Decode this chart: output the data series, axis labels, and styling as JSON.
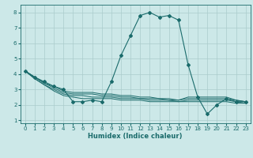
{
  "title": "",
  "xlabel": "Humidex (Indice chaleur)",
  "ylabel": "",
  "background_color": "#cce8e8",
  "grid_color": "#aacccc",
  "line_color": "#1a6b6b",
  "xlim": [
    -0.5,
    23.5
  ],
  "ylim": [
    0.8,
    8.5
  ],
  "xticks": [
    0,
    1,
    2,
    3,
    4,
    5,
    6,
    7,
    8,
    9,
    10,
    11,
    12,
    13,
    14,
    15,
    16,
    17,
    18,
    19,
    20,
    21,
    22,
    23
  ],
  "yticks": [
    1,
    2,
    3,
    4,
    5,
    6,
    7,
    8
  ],
  "lines": [
    {
      "x": [
        0,
        1,
        2,
        3,
        4,
        5,
        6,
        7,
        8,
        9,
        10,
        11,
        12,
        13,
        14,
        15,
        16,
        17,
        18,
        19,
        20,
        21,
        22,
        23
      ],
      "y": [
        4.2,
        3.8,
        3.5,
        3.2,
        3.0,
        2.2,
        2.2,
        2.3,
        2.2,
        3.5,
        5.2,
        6.5,
        7.8,
        8.0,
        7.7,
        7.8,
        7.5,
        4.6,
        2.5,
        1.4,
        2.0,
        2.4,
        2.2,
        2.2
      ],
      "marker": true
    },
    {
      "x": [
        0,
        1,
        2,
        3,
        4,
        5,
        6,
        7,
        8,
        9,
        10,
        11,
        12,
        13,
        14,
        15,
        16,
        17,
        18,
        19,
        20,
        21,
        22,
        23
      ],
      "y": [
        4.2,
        3.8,
        3.4,
        3.2,
        2.9,
        2.8,
        2.8,
        2.8,
        2.7,
        2.7,
        2.6,
        2.6,
        2.5,
        2.5,
        2.4,
        2.4,
        2.3,
        2.5,
        2.5,
        2.5,
        2.5,
        2.5,
        2.3,
        2.2
      ],
      "marker": false
    },
    {
      "x": [
        0,
        1,
        2,
        3,
        4,
        5,
        6,
        7,
        8,
        9,
        10,
        11,
        12,
        13,
        14,
        15,
        16,
        17,
        18,
        19,
        20,
        21,
        22,
        23
      ],
      "y": [
        4.2,
        3.8,
        3.4,
        3.1,
        2.8,
        2.7,
        2.7,
        2.7,
        2.6,
        2.6,
        2.5,
        2.5,
        2.4,
        2.4,
        2.4,
        2.3,
        2.3,
        2.4,
        2.4,
        2.4,
        2.4,
        2.4,
        2.3,
        2.2
      ],
      "marker": false
    },
    {
      "x": [
        0,
        1,
        2,
        3,
        4,
        5,
        6,
        7,
        8,
        9,
        10,
        11,
        12,
        13,
        14,
        15,
        16,
        17,
        18,
        19,
        20,
        21,
        22,
        23
      ],
      "y": [
        4.2,
        3.7,
        3.3,
        3.0,
        2.7,
        2.6,
        2.6,
        2.5,
        2.5,
        2.5,
        2.4,
        2.4,
        2.4,
        2.3,
        2.3,
        2.3,
        2.2,
        2.3,
        2.3,
        2.3,
        2.3,
        2.3,
        2.2,
        2.1
      ],
      "marker": false
    },
    {
      "x": [
        0,
        1,
        2,
        3,
        4,
        5,
        6,
        7,
        8,
        9,
        10,
        11,
        12,
        13,
        14,
        15,
        16,
        17,
        18,
        19,
        20,
        21,
        22,
        23
      ],
      "y": [
        4.2,
        3.7,
        3.3,
        2.9,
        2.6,
        2.5,
        2.4,
        2.4,
        2.4,
        2.4,
        2.3,
        2.3,
        2.3,
        2.2,
        2.2,
        2.2,
        2.2,
        2.2,
        2.2,
        2.2,
        2.2,
        2.2,
        2.1,
        2.1
      ],
      "marker": false
    }
  ],
  "tick_fontsize": 5.0,
  "xlabel_fontsize": 6.0,
  "figsize": [
    3.2,
    2.0
  ],
  "dpi": 100
}
